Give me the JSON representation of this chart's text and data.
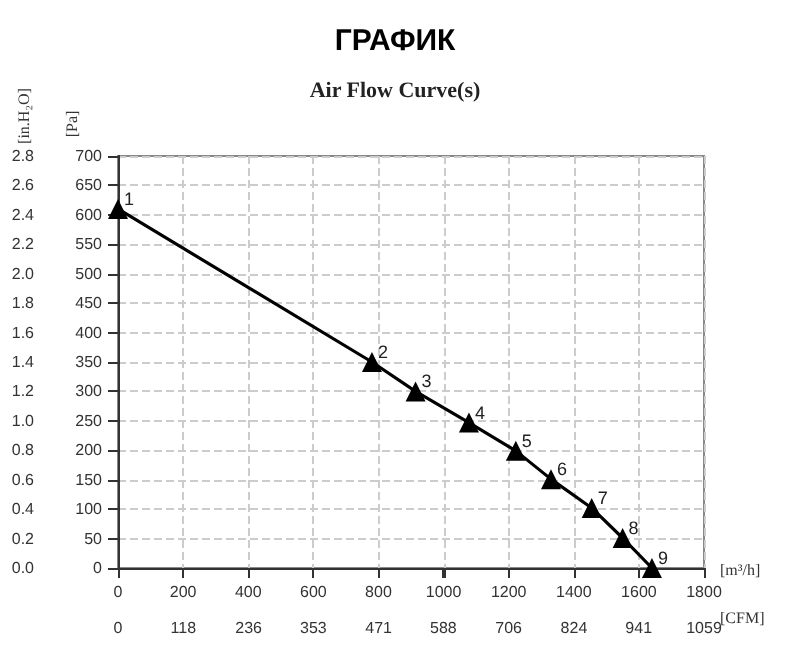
{
  "chart_data": {
    "type": "line",
    "title": "ГРАФИК",
    "subtitle": "Air Flow Curve(s)",
    "xlabel": "[m³/h]",
    "x2label": "[CFM]",
    "ylabel": "[Pa]",
    "y2label": "[in.H₂O]",
    "x": [
      0,
      780,
      914,
      1078,
      1222,
      1330,
      1455,
      1550,
      1640
    ],
    "series": [
      {
        "color": "#000000",
        "values": [
          610,
          350,
          300,
          247,
          199,
          151,
          102,
          51,
          0
        ]
      }
    ],
    "xlim": [
      0,
      1800
    ],
    "xticks": [
      0,
      200,
      400,
      600,
      800,
      1000,
      1200,
      1400,
      1600,
      1800
    ],
    "x2lim": [
      0,
      1059
    ],
    "x2ticks": [
      0,
      118,
      236,
      353,
      471,
      588,
      706,
      824,
      941,
      1059
    ],
    "ylim": [
      0,
      700
    ],
    "yticks": [
      0,
      50,
      100,
      150,
      200,
      250,
      300,
      350,
      400,
      450,
      500,
      550,
      600,
      650,
      700
    ],
    "y2lim": [
      0,
      2.8
    ],
    "y2ticks": [
      {
        "value": 0,
        "label": "0.0"
      },
      0.2,
      0.4,
      0.6,
      0.8,
      {
        "value": 1,
        "label": "1.0"
      },
      1.2,
      1.4,
      1.6,
      1.8,
      {
        "value": 2,
        "label": "2.0"
      },
      2.2,
      2.4,
      2.6,
      2.8
    ],
    "annotations": [
      {
        "text": "1",
        "x": 0,
        "y": 610
      },
      {
        "text": "2",
        "x": 780,
        "y": 350
      },
      {
        "text": "3",
        "x": 914,
        "y": 300
      },
      {
        "text": "4",
        "x": 1078,
        "y": 247
      },
      {
        "text": "5",
        "x": 1222,
        "y": 199
      },
      {
        "text": "6",
        "x": 1330,
        "y": 151
      },
      {
        "text": "7",
        "x": 1455,
        "y": 102
      },
      {
        "text": "8",
        "x": 1550,
        "y": 51
      },
      {
        "text": "9",
        "x": 1640,
        "y": 0
      }
    ],
    "grid": true,
    "marker": "triangle",
    "line_style": "solid"
  }
}
